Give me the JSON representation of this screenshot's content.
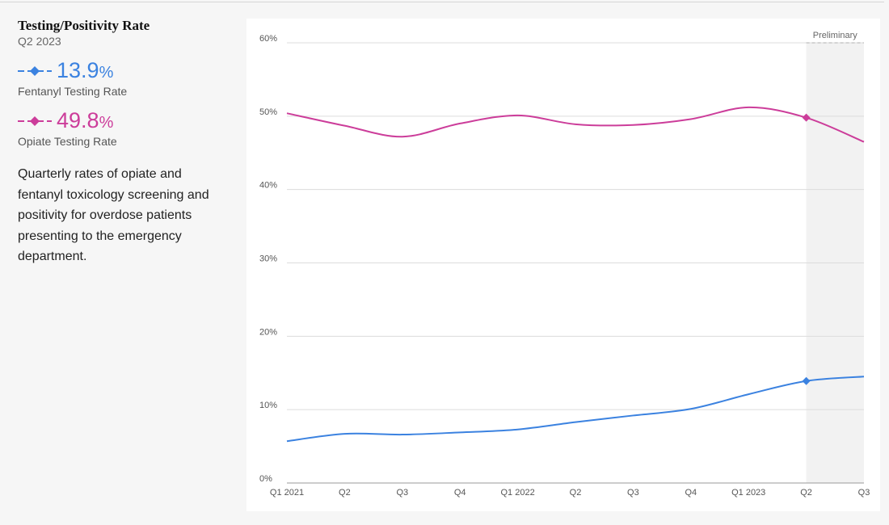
{
  "header": {
    "title": "Testing/Positivity Rate",
    "period": "Q2 2023"
  },
  "metrics": [
    {
      "value": "13.9",
      "unit": "%",
      "label": "Fentanyl Testing Rate",
      "color": "#3b82e0"
    },
    {
      "value": "49.8",
      "unit": "%",
      "label": "Opiate Testing Rate",
      "color": "#cc3d9a"
    }
  ],
  "description": "Quarterly rates of opiate and fentanyl toxicology screening and positivity for overdose patients presenting to the emergency department.",
  "chart_data": {
    "type": "line",
    "title": "",
    "xlabel": "",
    "ylabel": "",
    "categories": [
      "Q1 2021",
      "Q2",
      "Q3",
      "Q4",
      "Q1 2022",
      "Q2",
      "Q3",
      "Q4",
      "Q1 2023",
      "Q2",
      "Q3"
    ],
    "series": [
      {
        "name": "Opiate Testing Rate",
        "color": "#cc3d9a",
        "values": [
          50.4,
          48.7,
          47.2,
          49.0,
          50.1,
          48.9,
          48.8,
          49.6,
          51.2,
          49.8,
          46.5
        ]
      },
      {
        "name": "Fentanyl Testing Rate",
        "color": "#3b82e0",
        "values": [
          5.7,
          6.7,
          6.6,
          6.9,
          7.3,
          8.3,
          9.2,
          10.1,
          12.1,
          13.9,
          14.5
        ]
      }
    ],
    "highlight_index": 9,
    "ylim": [
      0,
      60
    ],
    "yticks": [
      {
        "value": 0,
        "label": "0%"
      },
      {
        "value": 10,
        "label": "10%"
      },
      {
        "value": 20,
        "label": "20%"
      },
      {
        "value": 30,
        "label": "30%"
      },
      {
        "value": 40,
        "label": "40%"
      },
      {
        "value": 50,
        "label": "50%"
      },
      {
        "value": 60,
        "label": "60%"
      }
    ],
    "preliminary": {
      "label": "Preliminary",
      "from_index": 9,
      "to_index": 10
    },
    "grid": true,
    "legend": "none"
  }
}
